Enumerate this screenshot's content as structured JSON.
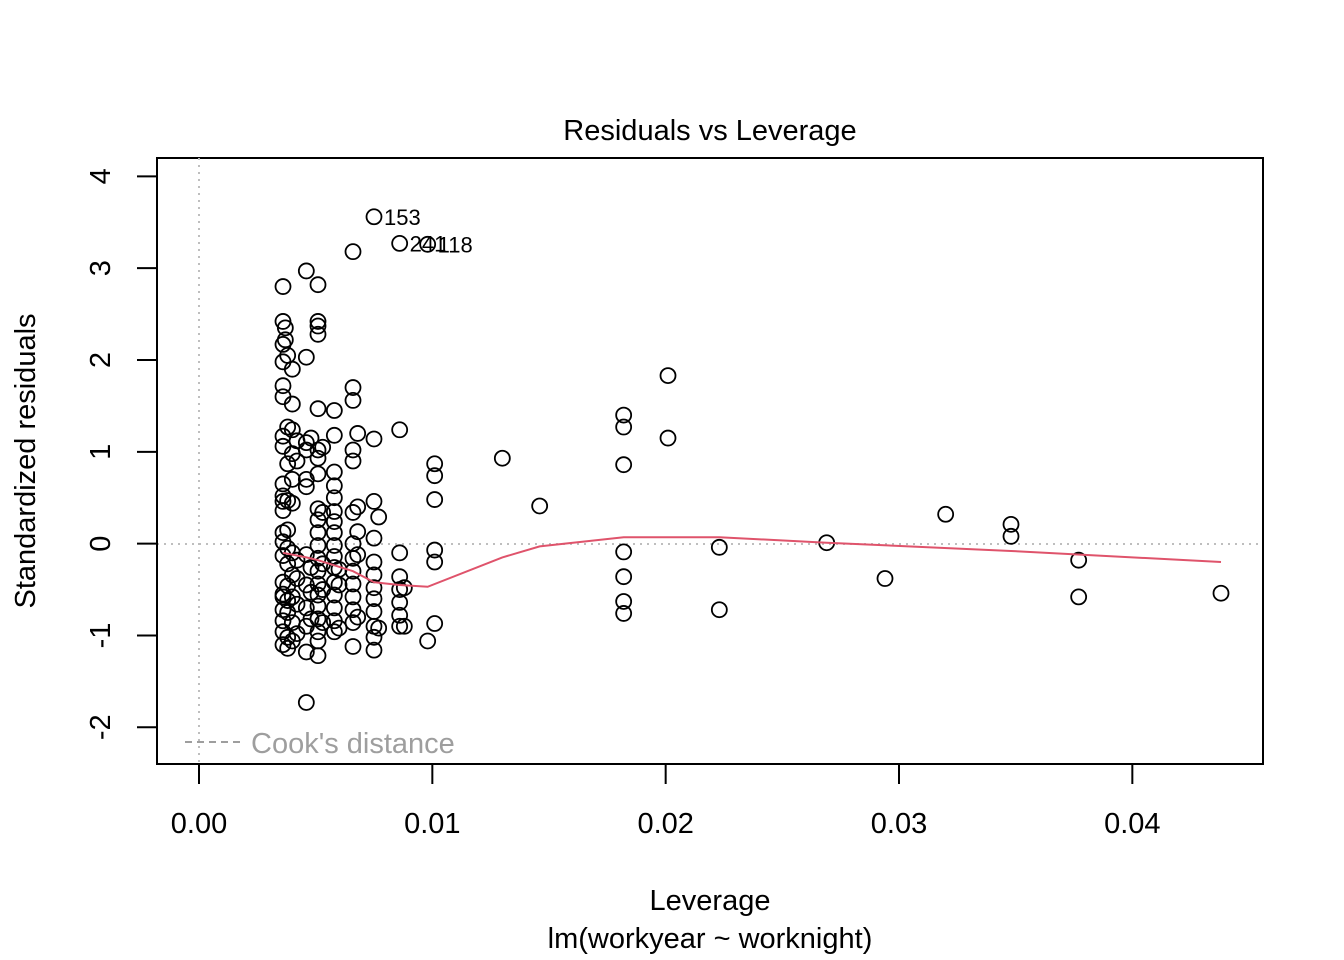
{
  "chart_data": {
    "type": "scatter",
    "title": "Residuals vs Leverage",
    "xlabel": "Leverage",
    "xlabel_sub": "lm(workyear ~ worknight)",
    "ylabel": "Standardized residuals",
    "xlim": [
      -0.0018,
      0.0456
    ],
    "ylim": [
      -2.4,
      4.2
    ],
    "xticks": [
      0.0,
      0.01,
      0.02,
      0.03,
      0.04
    ],
    "xtick_labels": [
      "0.00",
      "0.01",
      "0.02",
      "0.03",
      "0.04"
    ],
    "yticks": [
      -2,
      -1,
      0,
      1,
      2,
      3,
      4
    ],
    "ytick_labels": [
      "-2",
      "-1",
      "0",
      "1",
      "2",
      "3",
      "4"
    ],
    "reference_lines": {
      "x": 0,
      "y": 0,
      "style": "dotted",
      "color": "#bebebe"
    },
    "legend": {
      "position": "bottom-left",
      "label": "Cook's distance",
      "line_style": "dashed",
      "color": "#9e9e9e"
    },
    "point_color": "#000000",
    "smooth_color": "#df536b",
    "points": [
      [
        0.0036,
        2.8
      ],
      [
        0.0036,
        2.42
      ],
      [
        0.0037,
        2.35
      ],
      [
        0.0036,
        2.17
      ],
      [
        0.0037,
        2.22
      ],
      [
        0.0038,
        2.05
      ],
      [
        0.0036,
        1.98
      ],
      [
        0.0036,
        1.72
      ],
      [
        0.0036,
        1.6
      ],
      [
        0.0036,
        1.17
      ],
      [
        0.0036,
        1.06
      ],
      [
        0.0036,
        0.65
      ],
      [
        0.0036,
        0.52
      ],
      [
        0.0036,
        0.46
      ],
      [
        0.0036,
        0.36
      ],
      [
        0.0036,
        0.12
      ],
      [
        0.0036,
        0.02
      ],
      [
        0.0036,
        -0.13
      ],
      [
        0.0036,
        -0.42
      ],
      [
        0.0036,
        -0.55
      ],
      [
        0.0036,
        -0.58
      ],
      [
        0.0036,
        -0.72
      ],
      [
        0.0036,
        -0.84
      ],
      [
        0.0036,
        -0.96
      ],
      [
        0.0036,
        -1.1
      ],
      [
        0.0038,
        1.27
      ],
      [
        0.0038,
        0.87
      ],
      [
        0.0038,
        0.47
      ],
      [
        0.0038,
        0.15
      ],
      [
        0.0038,
        -0.05
      ],
      [
        0.0038,
        -0.22
      ],
      [
        0.0038,
        -0.46
      ],
      [
        0.0038,
        -0.62
      ],
      [
        0.0038,
        -0.75
      ],
      [
        0.0038,
        -1.02
      ],
      [
        0.0038,
        -1.14
      ],
      [
        0.004,
        1.9
      ],
      [
        0.004,
        1.52
      ],
      [
        0.004,
        1.24
      ],
      [
        0.004,
        0.98
      ],
      [
        0.004,
        0.7
      ],
      [
        0.004,
        0.44
      ],
      [
        0.004,
        -0.1
      ],
      [
        0.004,
        -0.34
      ],
      [
        0.004,
        -0.58
      ],
      [
        0.004,
        -0.86
      ],
      [
        0.004,
        -1.06
      ],
      [
        0.0042,
        1.12
      ],
      [
        0.0042,
        0.9
      ],
      [
        0.0042,
        -0.18
      ],
      [
        0.0042,
        -0.38
      ],
      [
        0.0042,
        -0.66
      ],
      [
        0.0042,
        -0.98
      ],
      [
        0.0046,
        2.97
      ],
      [
        0.0046,
        2.03
      ],
      [
        0.0046,
        1.1
      ],
      [
        0.0046,
        1.02
      ],
      [
        0.0046,
        0.7
      ],
      [
        0.0046,
        0.62
      ],
      [
        0.0046,
        -0.12
      ],
      [
        0.0046,
        -0.45
      ],
      [
        0.0046,
        -0.7
      ],
      [
        0.0046,
        -0.9
      ],
      [
        0.0046,
        -1.18
      ],
      [
        0.0046,
        -1.73
      ],
      [
        0.0048,
        1.15
      ],
      [
        0.0048,
        -0.26
      ],
      [
        0.0048,
        -0.53
      ],
      [
        0.0048,
        -0.82
      ],
      [
        0.0051,
        2.82
      ],
      [
        0.0051,
        2.42
      ],
      [
        0.0051,
        2.37
      ],
      [
        0.0051,
        2.28
      ],
      [
        0.0051,
        1.47
      ],
      [
        0.0051,
        1.02
      ],
      [
        0.0051,
        0.93
      ],
      [
        0.0051,
        0.76
      ],
      [
        0.0051,
        0.38
      ],
      [
        0.0051,
        0.26
      ],
      [
        0.0051,
        0.12
      ],
      [
        0.0051,
        -0.02
      ],
      [
        0.0051,
        -0.16
      ],
      [
        0.0051,
        -0.3
      ],
      [
        0.0051,
        -0.44
      ],
      [
        0.0051,
        -0.56
      ],
      [
        0.0051,
        -0.68
      ],
      [
        0.0051,
        -0.82
      ],
      [
        0.0051,
        -0.96
      ],
      [
        0.0051,
        -1.06
      ],
      [
        0.0051,
        -1.22
      ],
      [
        0.0053,
        1.05
      ],
      [
        0.0053,
        0.34
      ],
      [
        0.0053,
        -0.22
      ],
      [
        0.0053,
        -0.5
      ],
      [
        0.0053,
        -0.86
      ],
      [
        0.0058,
        1.45
      ],
      [
        0.0058,
        1.18
      ],
      [
        0.0058,
        0.78
      ],
      [
        0.0058,
        0.63
      ],
      [
        0.0058,
        0.5
      ],
      [
        0.0058,
        0.35
      ],
      [
        0.0058,
        0.24
      ],
      [
        0.0058,
        0.12
      ],
      [
        0.0058,
        -0.02
      ],
      [
        0.0058,
        -0.14
      ],
      [
        0.0058,
        -0.26
      ],
      [
        0.0058,
        -0.42
      ],
      [
        0.0058,
        -0.56
      ],
      [
        0.0058,
        -0.7
      ],
      [
        0.0058,
        -0.84
      ],
      [
        0.0058,
        -0.96
      ],
      [
        0.006,
        -0.28
      ],
      [
        0.006,
        -0.45
      ],
      [
        0.006,
        -0.92
      ],
      [
        0.0066,
        3.18
      ],
      [
        0.0066,
        1.7
      ],
      [
        0.0066,
        1.56
      ],
      [
        0.0066,
        1.02
      ],
      [
        0.0066,
        0.9
      ],
      [
        0.0066,
        0.34
      ],
      [
        0.0066,
        0.0
      ],
      [
        0.0066,
        -0.16
      ],
      [
        0.0066,
        -0.3
      ],
      [
        0.0066,
        -0.44
      ],
      [
        0.0066,
        -0.58
      ],
      [
        0.0066,
        -0.72
      ],
      [
        0.0066,
        -0.86
      ],
      [
        0.0066,
        -1.12
      ],
      [
        0.0068,
        1.2
      ],
      [
        0.0068,
        0.4
      ],
      [
        0.0068,
        0.13
      ],
      [
        0.0068,
        -0.12
      ],
      [
        0.0068,
        -0.8
      ],
      [
        0.0075,
        3.56
      ],
      [
        0.0075,
        1.14
      ],
      [
        0.0075,
        0.46
      ],
      [
        0.0075,
        0.06
      ],
      [
        0.0075,
        -0.2
      ],
      [
        0.0075,
        -0.34
      ],
      [
        0.0075,
        -0.48
      ],
      [
        0.0075,
        -0.6
      ],
      [
        0.0075,
        -0.74
      ],
      [
        0.0075,
        -0.9
      ],
      [
        0.0075,
        -1.02
      ],
      [
        0.0075,
        -1.16
      ],
      [
        0.0077,
        0.29
      ],
      [
        0.0077,
        -0.92
      ],
      [
        0.0086,
        3.27
      ],
      [
        0.0086,
        1.24
      ],
      [
        0.0086,
        -0.1
      ],
      [
        0.0086,
        -0.36
      ],
      [
        0.0086,
        -0.5
      ],
      [
        0.0086,
        -0.64
      ],
      [
        0.0086,
        -0.78
      ],
      [
        0.0086,
        -0.9
      ],
      [
        0.0088,
        -0.48
      ],
      [
        0.0088,
        -0.9
      ],
      [
        0.0098,
        3.26
      ],
      [
        0.0098,
        -1.06
      ],
      [
        0.0101,
        0.87
      ],
      [
        0.0101,
        0.74
      ],
      [
        0.0101,
        0.48
      ],
      [
        0.0101,
        -0.07
      ],
      [
        0.0101,
        -0.2
      ],
      [
        0.0101,
        -0.87
      ],
      [
        0.013,
        0.93
      ],
      [
        0.0146,
        0.41
      ],
      [
        0.0182,
        1.4
      ],
      [
        0.0182,
        1.27
      ],
      [
        0.0182,
        0.86
      ],
      [
        0.0182,
        -0.09
      ],
      [
        0.0182,
        -0.36
      ],
      [
        0.0182,
        -0.63
      ],
      [
        0.0182,
        -0.76
      ],
      [
        0.0201,
        1.83
      ],
      [
        0.0201,
        1.15
      ],
      [
        0.0223,
        -0.04
      ],
      [
        0.0223,
        -0.72
      ],
      [
        0.0269,
        0.01
      ],
      [
        0.0294,
        -0.38
      ],
      [
        0.032,
        0.32
      ],
      [
        0.0348,
        0.21
      ],
      [
        0.0348,
        0.08
      ],
      [
        0.0377,
        -0.18
      ],
      [
        0.0377,
        -0.58
      ],
      [
        0.0438,
        -0.54
      ]
    ],
    "point_labels": [
      {
        "x": 0.0075,
        "y": 3.56,
        "label": "153"
      },
      {
        "x": 0.0086,
        "y": 3.27,
        "label": "241"
      },
      {
        "x": 0.0098,
        "y": 3.26,
        "label": "118"
      }
    ],
    "smooth_line": {
      "x": [
        0.0036,
        0.0046,
        0.0051,
        0.0066,
        0.0075,
        0.0086,
        0.0098,
        0.013,
        0.0146,
        0.0182,
        0.0223,
        0.0269,
        0.0348,
        0.0438
      ],
      "y": [
        -0.1,
        -0.15,
        -0.18,
        -0.3,
        -0.42,
        -0.45,
        -0.47,
        -0.15,
        -0.03,
        0.07,
        0.07,
        0.01,
        -0.08,
        -0.2
      ]
    }
  }
}
